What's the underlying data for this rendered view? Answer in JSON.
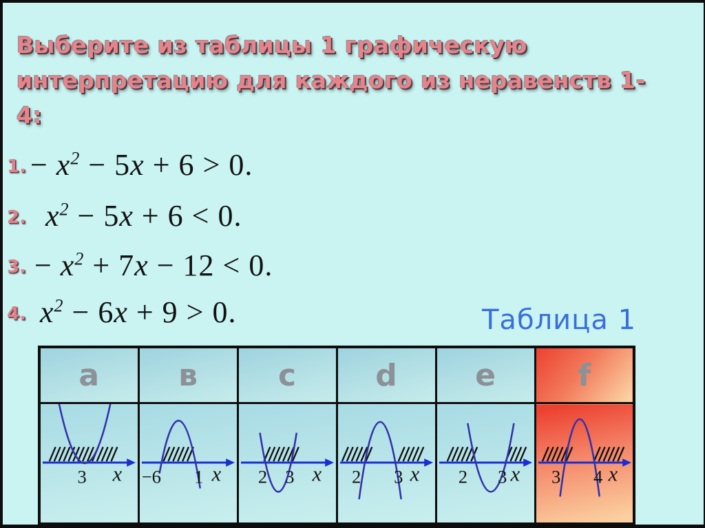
{
  "slide": {
    "background_color": "#c9f4f2",
    "frame_color": "#0d0d0d",
    "title": {
      "line1": "Выберите из таблицы 1 графическую",
      "line2": "интерпретацию для каждого из неравенств 1-4:",
      "color": "#e8838b"
    },
    "table_caption": {
      "text": "Таблица 1",
      "color": "#3a6edd"
    }
  },
  "inequalities": [
    {
      "number": "1.",
      "tokens": [
        {
          "t": "− "
        },
        {
          "t": "x",
          "i": true,
          "sup": "2"
        },
        {
          "t": " − 5"
        },
        {
          "t": "x",
          "i": true
        },
        {
          "t": " + 6 > 0."
        }
      ]
    },
    {
      "number": "2.",
      "tokens": [
        {
          "t": "x",
          "i": true,
          "sup": "2"
        },
        {
          "t": " − 5"
        },
        {
          "t": "x",
          "i": true
        },
        {
          "t": " + 6 < 0."
        }
      ]
    },
    {
      "number": "3.",
      "tokens": [
        {
          "t": "− "
        },
        {
          "t": "x",
          "i": true,
          "sup": "2"
        },
        {
          "t": " + 7"
        },
        {
          "t": "x",
          "i": true
        },
        {
          "t": " − 12 < 0."
        }
      ]
    },
    {
      "number": "4.",
      "tokens": [
        {
          "t": "x",
          "i": true,
          "sup": "2"
        },
        {
          "t": " − 6"
        },
        {
          "t": "x",
          "i": true
        },
        {
          "t": " + 9 > 0."
        }
      ]
    }
  ],
  "table": {
    "headers": [
      "a",
      "в",
      "c",
      "d",
      "e",
      "f"
    ],
    "header_letter_color": "#8b9196",
    "cell_background": [
      "#a8dbe4",
      "#c9efee"
    ],
    "highlight_background": [
      "#ed4130",
      "#fdd9a9"
    ],
    "graph_colors": {
      "axis": "#1c2ed0",
      "parabola": "#3232aa",
      "hatch": "#111111",
      "labels": "#141414"
    },
    "graphs": [
      {
        "column": "a",
        "opens": "up",
        "roots": [
          "3"
        ],
        "tangent": true,
        "hatch": "full",
        "axis_label": "x"
      },
      {
        "column": "в",
        "opens": "down",
        "roots": [
          "−6",
          "1"
        ],
        "tangent": false,
        "hatch": "between",
        "axis_label": "x"
      },
      {
        "column": "c",
        "opens": "up",
        "roots": [
          "2",
          "3"
        ],
        "tangent": false,
        "hatch": "between",
        "axis_label": "x"
      },
      {
        "column": "d",
        "opens": "down",
        "roots": [
          "2",
          "3"
        ],
        "tangent": false,
        "hatch": "outside",
        "axis_label": "x"
      },
      {
        "column": "e",
        "opens": "up",
        "roots": [
          "2",
          "3"
        ],
        "tangent": false,
        "hatch": "outside",
        "axis_label": "x"
      },
      {
        "column": "f",
        "opens": "down",
        "roots": [
          "3",
          "4"
        ],
        "tangent": false,
        "hatch": "outside",
        "axis_label": "x",
        "highlight": true
      }
    ]
  }
}
